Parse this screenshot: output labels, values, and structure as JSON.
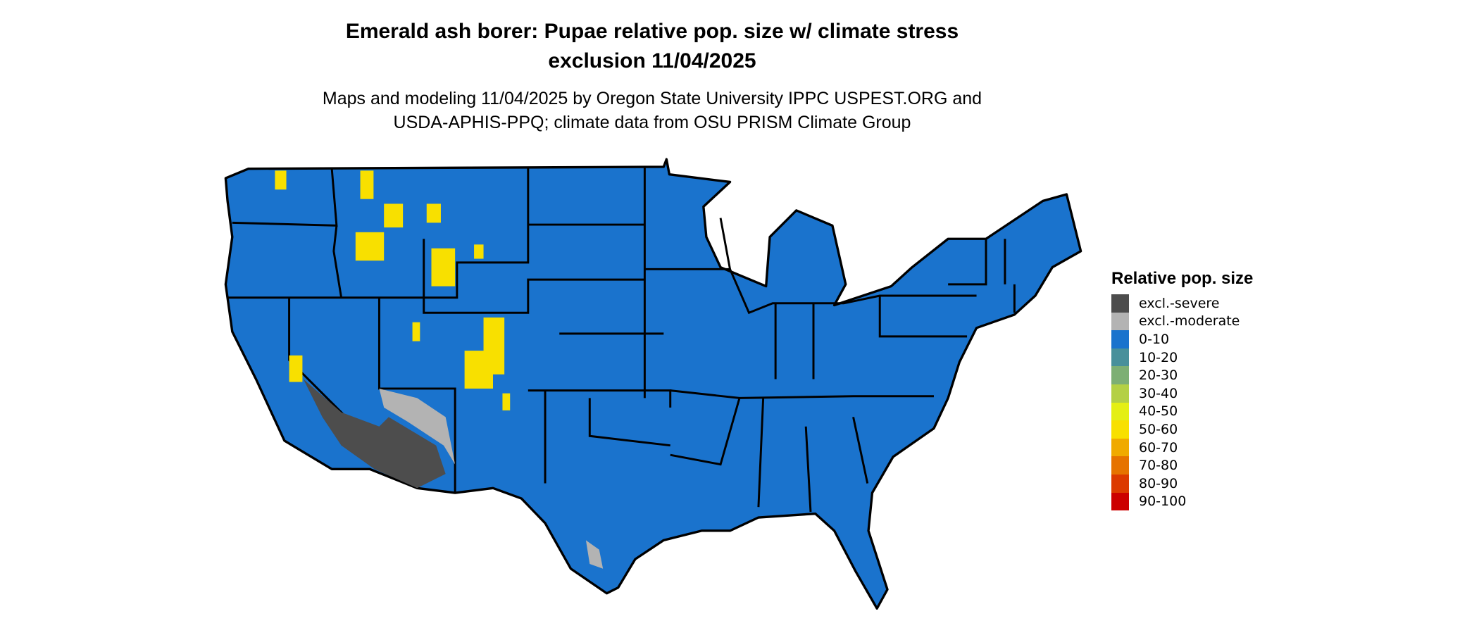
{
  "title_line1": "Emerald ash borer: Pupae relative pop. size w/ climate stress",
  "title_line2": "exclusion 11/04/2025",
  "subtitle_line1": "Maps and modeling 11/04/2025 by Oregon State University IPPC USPEST.ORG and",
  "subtitle_line2": "USDA-APHIS-PPQ; climate data from OSU PRISM Climate Group",
  "map": {
    "region": "Contiguous United States",
    "dominant_class": "0-10",
    "colors": {
      "state_border": "#000000",
      "background": "#ffffff"
    }
  },
  "legend": {
    "title": "Relative pop. size",
    "items": [
      {
        "label": "excl.-severe",
        "color": "#4d4d4d"
      },
      {
        "label": "excl.-moderate",
        "color": "#b3b3b3"
      },
      {
        "label": "0-10",
        "color": "#1a73cd"
      },
      {
        "label": "10-20",
        "color": "#48909b"
      },
      {
        "label": "20-30",
        "color": "#7daf74"
      },
      {
        "label": "30-40",
        "color": "#b4d045"
      },
      {
        "label": "40-50",
        "color": "#e4ef14"
      },
      {
        "label": "50-60",
        "color": "#f8e000"
      },
      {
        "label": "60-70",
        "color": "#f0aa00"
      },
      {
        "label": "70-80",
        "color": "#e67300"
      },
      {
        "label": "80-90",
        "color": "#dc3a00"
      },
      {
        "label": "90-100",
        "color": "#cc0000"
      }
    ]
  }
}
